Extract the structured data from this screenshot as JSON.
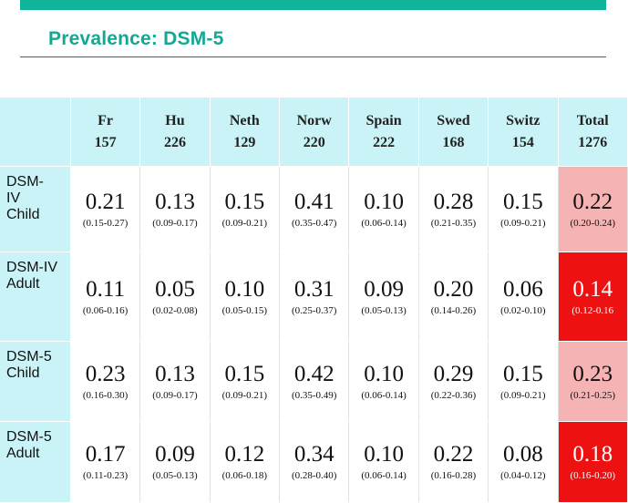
{
  "slide": {
    "title": "Prevalence: DSM-5"
  },
  "colors": {
    "accent": "#11b39b",
    "title": "#14a893",
    "header_bg": "#c9f3f6",
    "total_light": "#f6b3b3",
    "total_strong": "#ee1111"
  },
  "table": {
    "columns": [
      {
        "name": "Fr",
        "n": "157"
      },
      {
        "name": "Hu",
        "n": "226"
      },
      {
        "name": "Neth",
        "n": "129"
      },
      {
        "name": "Norw",
        "n": "220"
      },
      {
        "name": "Spain",
        "n": "222"
      },
      {
        "name": "Swed",
        "n": "168"
      },
      {
        "name": "Switz",
        "n": "154"
      },
      {
        "name": "Total",
        "n": "1276"
      }
    ],
    "rows": [
      {
        "label": "DSM-\nIV\nChild",
        "cells": [
          {
            "value": "0.21",
            "ci": "(0.15-0.27)"
          },
          {
            "value": "0.13",
            "ci": "(0.09-0.17)"
          },
          {
            "value": "0.15",
            "ci": "(0.09-0.21)"
          },
          {
            "value": "0.41",
            "ci": "(0.35-0.47)"
          },
          {
            "value": "0.10",
            "ci": "(0.06-0.14)"
          },
          {
            "value": "0.28",
            "ci": "(0.21-0.35)"
          },
          {
            "value": "0.15",
            "ci": "(0.09-0.21)"
          },
          {
            "value": "0.22",
            "ci": "(0.20-0.24)"
          }
        ]
      },
      {
        "label": "DSM-IV\nAdult",
        "cells": [
          {
            "value": "0.11",
            "ci": "(0.06-0.16)"
          },
          {
            "value": "0.05",
            "ci": "(0.02-0.08)"
          },
          {
            "value": "0.10",
            "ci": "(0.05-0.15)"
          },
          {
            "value": "0.31",
            "ci": "(0.25-0.37)"
          },
          {
            "value": "0.09",
            "ci": "(0.05-0.13)"
          },
          {
            "value": "0.20",
            "ci": "(0.14-0.26)"
          },
          {
            "value": "0.06",
            "ci": "(0.02-0.10)"
          },
          {
            "value": "0.14",
            "ci": "(0.12-0.16"
          }
        ]
      },
      {
        "label": "DSM-5\nChild",
        "cells": [
          {
            "value": "0.23",
            "ci": "(0.16-0.30)"
          },
          {
            "value": "0.13",
            "ci": "(0.09-0.17)"
          },
          {
            "value": "0.15",
            "ci": "(0.09-0.21)"
          },
          {
            "value": "0.42",
            "ci": "(0.35-0.49)"
          },
          {
            "value": "0.10",
            "ci": "(0.06-0.14)"
          },
          {
            "value": "0.29",
            "ci": "(0.22-0.36)"
          },
          {
            "value": "0.15",
            "ci": "(0.09-0.21)"
          },
          {
            "value": "0.23",
            "ci": "(0.21-0.25)"
          }
        ]
      },
      {
        "label": "DSM-5\nAdult",
        "cells": [
          {
            "value": "0.17",
            "ci": "(0.11-0.23)"
          },
          {
            "value": "0.09",
            "ci": "(0.05-0.13)"
          },
          {
            "value": "0.12",
            "ci": "(0.06-0.18)"
          },
          {
            "value": "0.34",
            "ci": "(0.28-0.40)"
          },
          {
            "value": "0.10",
            "ci": "(0.06-0.14)"
          },
          {
            "value": "0.22",
            "ci": "(0.16-0.28)"
          },
          {
            "value": "0.08",
            "ci": "(0.04-0.12)"
          },
          {
            "value": "0.18",
            "ci": "(0.16-0.20)"
          }
        ]
      }
    ]
  }
}
